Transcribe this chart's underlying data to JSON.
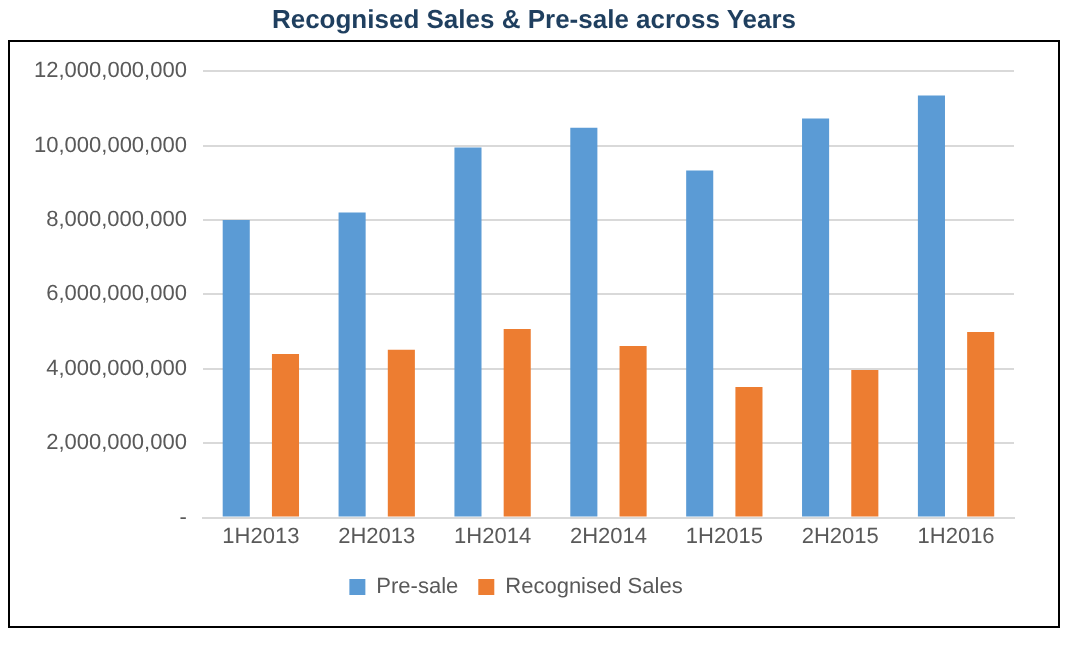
{
  "chart_data": {
    "type": "bar",
    "title": "Recognised Sales & Pre-sale across Years",
    "categories": [
      "1H2013",
      "2H2013",
      "1H2014",
      "2H2014",
      "1H2015",
      "2H2015",
      "1H2016"
    ],
    "series": [
      {
        "name": "Pre-sale",
        "color": "#5b9bd5",
        "values": [
          8000000000,
          8200000000,
          9950000000,
          10480000000,
          9330000000,
          10730000000,
          11350000000
        ]
      },
      {
        "name": "Recognised Sales",
        "color": "#ed7d31",
        "values": [
          4400000000,
          4510000000,
          5070000000,
          4610000000,
          3510000000,
          3970000000,
          4990000000
        ]
      }
    ],
    "ylim": [
      0,
      12000000000
    ],
    "yticks": [
      {
        "value": 0,
        "label": "-"
      },
      {
        "value": 2000000000,
        "label": "2,000,000,000"
      },
      {
        "value": 4000000000,
        "label": "4,000,000,000"
      },
      {
        "value": 6000000000,
        "label": "6,000,000,000"
      },
      {
        "value": 8000000000,
        "label": "8,000,000,000"
      },
      {
        "value": 10000000000,
        "label": "10,000,000,000"
      },
      {
        "value": 12000000000,
        "label": "12,000,000,000"
      }
    ],
    "grid": "y",
    "legend": "bottom"
  }
}
